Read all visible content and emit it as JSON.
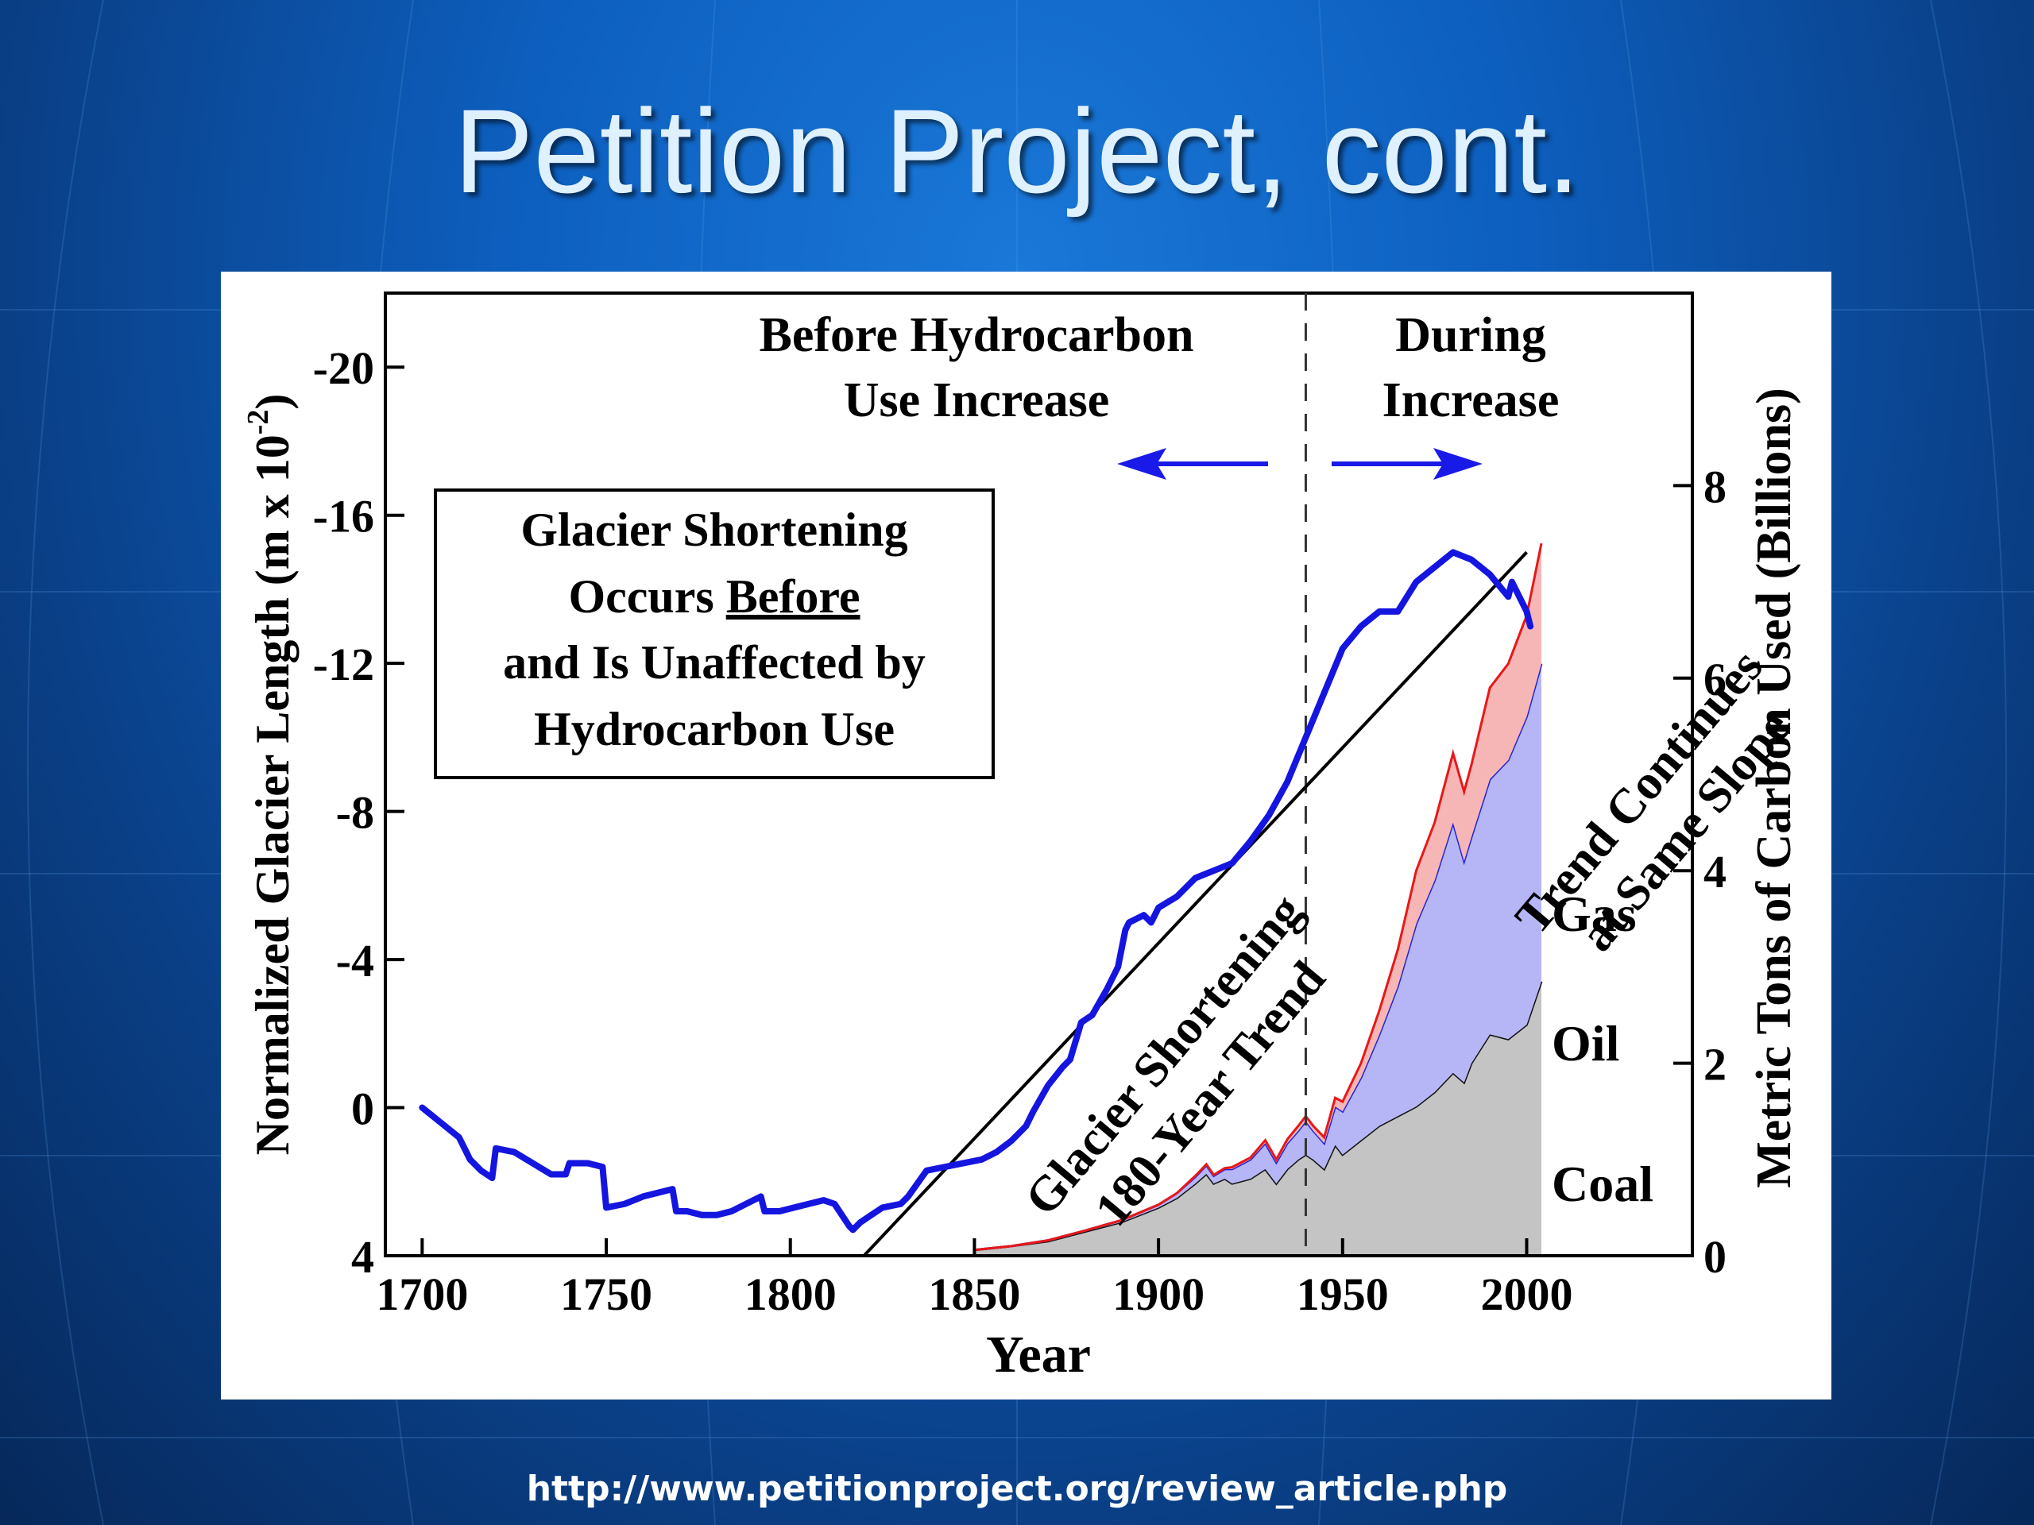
{
  "slide": {
    "title": "Petition Project, cont.",
    "source_url": "http://www.petitionproject.org/review_article.php"
  },
  "colors": {
    "glacier_line": "#1515e0",
    "coal_fill": "#c4c4c4",
    "oil_fill": "#b6b6f6",
    "gas_fill": "#f6b6b6",
    "gas_line": "#e81818",
    "oil_line": "#2424d8",
    "trend_line": "#000000"
  },
  "chart_data": {
    "type": "line",
    "xlabel": "Year",
    "ylabel_left": "Normalized Glacier Length (m x 10",
    "ylabel_left_exponent": "-2",
    "ylabel_left_close": ")",
    "ylabel_right": "Metric Tons of Carbon Used (Billions)",
    "xlim": [
      1690,
      2045
    ],
    "ylim_left": [
      4,
      -22
    ],
    "ylim_right": [
      0,
      10
    ],
    "xticks": [
      1700,
      1750,
      1800,
      1850,
      1900,
      1950,
      2000
    ],
    "yticks_left": [
      -20,
      -16,
      -12,
      -8,
      -4,
      0,
      4
    ],
    "yticks_right": [
      0,
      2,
      4,
      6,
      8
    ],
    "divider_year": 1940,
    "annotations": {
      "before_line1": "Before Hydrocarbon",
      "before_line2": "Use Increase",
      "during_line1": "During",
      "during_line2": "Increase",
      "box_line1": "Glacier Shortening",
      "box_line2_prefix": "Occurs ",
      "box_line2_underlined": "Before",
      "box_line3": "and Is Unaffected by",
      "box_line4": "Hydrocarbon Use",
      "trend_line1": "Glacier Shortening",
      "trend_line2": "180-Year Trend",
      "continue_line1": "Trend Continues",
      "continue_line2": "at Same Slope",
      "label_gas": "Gas",
      "label_oil": "Oil",
      "label_coal": "Coal"
    },
    "glacier_series": {
      "name": "",
      "x": [
        1700,
        1705,
        1710,
        1713,
        1716,
        1719,
        1720,
        1725,
        1730,
        1735,
        1739,
        1740,
        1745,
        1749,
        1750,
        1755,
        1760,
        1768,
        1769,
        1772,
        1776,
        1780,
        1784,
        1788,
        1792,
        1793,
        1797,
        1801,
        1805,
        1809,
        1812,
        1816,
        1817,
        1819,
        1822,
        1825,
        1830,
        1832,
        1837,
        1842,
        1847,
        1852,
        1856,
        1860,
        1864,
        1866,
        1870,
        1874,
        1876,
        1879,
        1882,
        1886,
        1889,
        1891,
        1892,
        1896,
        1898,
        1900,
        1905,
        1910,
        1915,
        1920,
        1925,
        1930,
        1935,
        1940,
        1945,
        1950,
        1955,
        1960,
        1965,
        1970,
        1975,
        1980,
        1985,
        1990,
        1995,
        1996,
        1998,
        1999,
        2000,
        2001
      ],
      "y": [
        0,
        0.4,
        0.8,
        1.4,
        1.7,
        1.9,
        1.1,
        1.2,
        1.5,
        1.8,
        1.8,
        1.5,
        1.5,
        1.6,
        2.7,
        2.6,
        2.4,
        2.2,
        2.8,
        2.8,
        2.9,
        2.9,
        2.8,
        2.6,
        2.4,
        2.8,
        2.8,
        2.7,
        2.6,
        2.5,
        2.6,
        3.2,
        3.3,
        3.1,
        2.9,
        2.7,
        2.6,
        2.4,
        1.7,
        1.6,
        1.5,
        1.4,
        1.2,
        0.9,
        0.5,
        0.1,
        -0.6,
        -1.1,
        -1.3,
        -2.3,
        -2.5,
        -3.2,
        -3.8,
        -4.8,
        -5.0,
        -5.2,
        -5.0,
        -5.4,
        -5.7,
        -6.2,
        -6.4,
        -6.6,
        -7.2,
        -7.9,
        -8.8,
        -10.0,
        -11.2,
        -12.4,
        -13.0,
        -13.4,
        -13.4,
        -14.2,
        -14.6,
        -15.0,
        -14.8,
        -14.4,
        -13.8,
        -14.2,
        -13.8,
        -13.6,
        -13.4,
        -13.0
      ]
    },
    "trend_line": {
      "x": [
        1820,
        2000
      ],
      "y": [
        4,
        -15
      ]
    },
    "carbon_years": [
      1850,
      1860,
      1870,
      1880,
      1890,
      1900,
      1905,
      1910,
      1913,
      1915,
      1918,
      1920,
      1925,
      1929,
      1932,
      1935,
      1938,
      1940,
      1942,
      1945,
      1948,
      1950,
      1955,
      1960,
      1965,
      1970,
      1975,
      1980,
      1983,
      1985,
      1990,
      1995,
      2000,
      2004
    ],
    "carbon_series": [
      {
        "name": "Coal",
        "values": [
          0.06,
          0.1,
          0.15,
          0.25,
          0.35,
          0.5,
          0.6,
          0.75,
          0.85,
          0.75,
          0.8,
          0.75,
          0.8,
          0.9,
          0.75,
          0.9,
          1.0,
          1.05,
          1.0,
          0.9,
          1.15,
          1.05,
          1.2,
          1.35,
          1.45,
          1.55,
          1.7,
          1.9,
          1.8,
          2.0,
          2.3,
          2.25,
          2.4,
          2.85
        ]
      },
      {
        "name": "Oil",
        "values": [
          0.0,
          0.0,
          0.01,
          0.01,
          0.02,
          0.03,
          0.05,
          0.07,
          0.09,
          0.08,
          0.1,
          0.15,
          0.2,
          0.27,
          0.22,
          0.27,
          0.3,
          0.35,
          0.3,
          0.27,
          0.4,
          0.45,
          0.65,
          0.95,
          1.35,
          1.9,
          2.2,
          2.6,
          2.3,
          2.35,
          2.65,
          2.9,
          3.2,
          3.3
        ]
      },
      {
        "name": "Gas",
        "values": [
          0.0,
          0.0,
          0.0,
          0.0,
          0.0,
          0.0,
          0.0,
          0.01,
          0.01,
          0.01,
          0.01,
          0.02,
          0.02,
          0.03,
          0.03,
          0.04,
          0.05,
          0.05,
          0.05,
          0.06,
          0.09,
          0.1,
          0.15,
          0.25,
          0.38,
          0.55,
          0.6,
          0.72,
          0.72,
          0.75,
          0.95,
          1.0,
          1.05,
          1.25
        ]
      }
    ]
  }
}
